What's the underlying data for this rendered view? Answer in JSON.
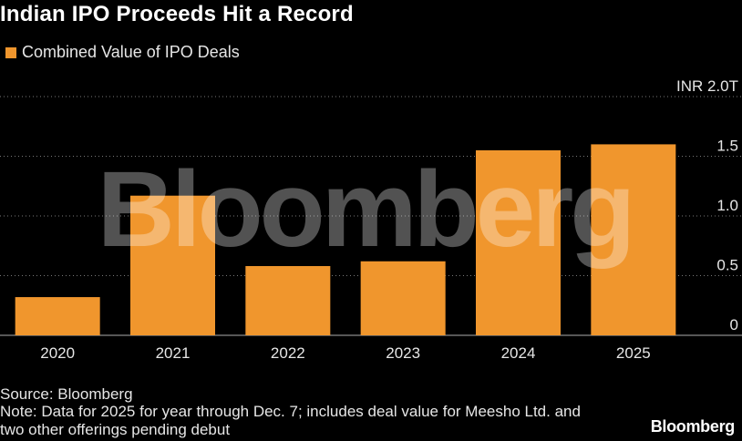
{
  "header": {
    "title": "Indian IPO Proceeds Hit a Record"
  },
  "legend": {
    "label": "Combined Value of IPO Deals"
  },
  "chart_data": {
    "type": "bar",
    "categories": [
      "2020",
      "2021",
      "2022",
      "2023",
      "2024",
      "2025"
    ],
    "series": [
      {
        "name": "Combined Value of IPO Deals",
        "values": [
          0.32,
          1.17,
          0.58,
          0.62,
          1.55,
          1.6
        ]
      }
    ],
    "ylim": [
      0,
      2.0
    ],
    "yticks": [
      {
        "value": 0,
        "label": "0"
      },
      {
        "value": 0.5,
        "label": "0.5"
      },
      {
        "value": 1.0,
        "label": "1.0"
      },
      {
        "value": 1.5,
        "label": "1.5"
      },
      {
        "value": 2.0,
        "label": "INR 2.0T"
      }
    ],
    "grid": "horizontal-dotted",
    "bar_color": "#f0962d",
    "watermark": "Bloomberg"
  },
  "footer": {
    "source": "Source: Bloomberg",
    "note": "Note: Data for 2025 for year through Dec. 7; includes deal value for Meesho Ltd. and two other offerings pending debut",
    "brand": "Bloomberg"
  }
}
